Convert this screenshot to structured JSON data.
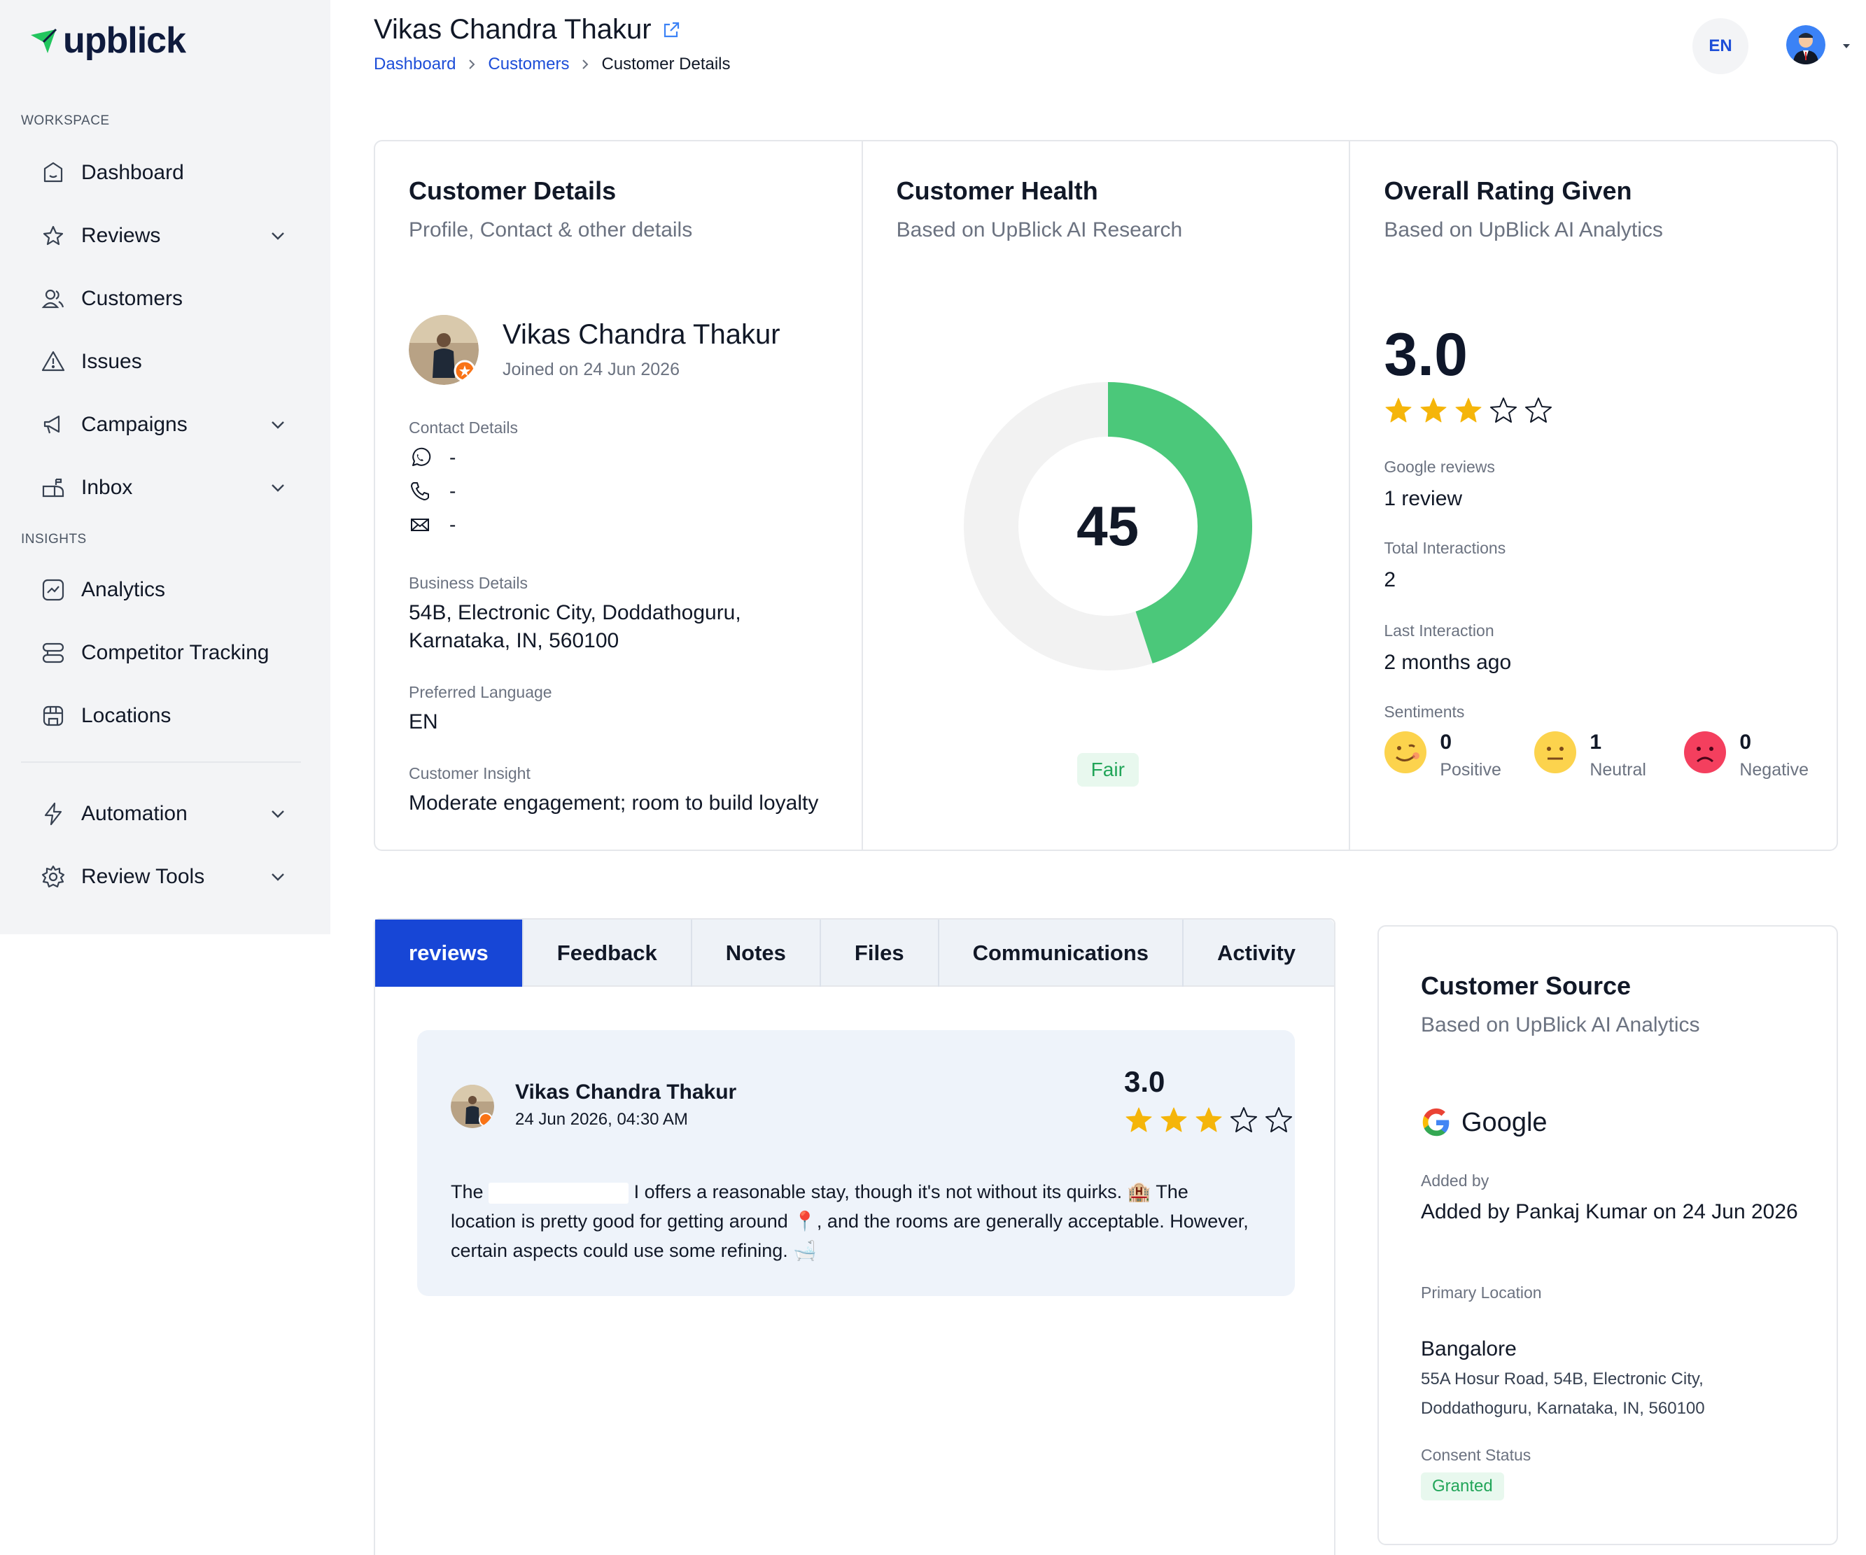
{
  "brand": {
    "name": "upblick",
    "accent": "#22c55e",
    "primary": "#1746d6"
  },
  "sidebar": {
    "workspace_label": "WORKSPACE",
    "insights_label": "INSIGHTS",
    "items": [
      {
        "label": "Dashboard",
        "icon": "dashboard-icon"
      },
      {
        "label": "Reviews",
        "icon": "reviews-icon"
      },
      {
        "label": "Customers",
        "icon": "customers-icon"
      },
      {
        "label": "Issues",
        "icon": "issues-icon"
      },
      {
        "label": "Campaigns",
        "icon": "campaigns-icon"
      },
      {
        "label": "Inbox",
        "icon": "inbox-icon"
      },
      {
        "label": "Analytics",
        "icon": "analytics-icon"
      },
      {
        "label": "Competitor Tracking",
        "icon": "competitor-icon"
      },
      {
        "label": "Locations",
        "icon": "locations-icon"
      },
      {
        "label": "Automation",
        "icon": "automation-icon"
      },
      {
        "label": "Review Tools",
        "icon": "review-tools-icon"
      }
    ]
  },
  "header": {
    "title": "Vikas Chandra Thakur",
    "breadcrumb": [
      "Dashboard",
      "Customers",
      "Customer Details"
    ],
    "lang": "EN"
  },
  "customer_details": {
    "title": "Customer Details",
    "subtitle": "Profile, Contact & other details",
    "name": "Vikas Chandra Thakur",
    "joined": "Joined on 24 Jun 2026",
    "contact_label": "Contact Details",
    "whatsapp": "-",
    "phone": "-",
    "email": "-",
    "business_label": "Business Details",
    "business_line1": "54B, Electronic City, Doddathoguru,",
    "business_line2": "Karnataka, IN, 560100",
    "language_label": "Preferred Language",
    "language": "EN",
    "insight_label": "Customer Insight",
    "insight": "Moderate engagement; room to build loyalty"
  },
  "customer_health": {
    "title": "Customer Health",
    "subtitle": "Based on UpBlick AI Research",
    "score": "45",
    "score_value": 45,
    "score_max": 100,
    "status": "Fair",
    "fill_color": "#4bc87a",
    "track_color": "#f2f2f2"
  },
  "overall_rating": {
    "title": "Overall Rating Given",
    "subtitle": "Based on UpBlick AI Analytics",
    "rating": "3.0",
    "stars_filled": 3,
    "stars_total": 5,
    "google_label": "Google reviews",
    "google_value": "1 review",
    "interactions_label": "Total Interactions",
    "interactions_value": "2",
    "last_label": "Last Interaction",
    "last_value": "2 months ago",
    "sentiments_label": "Sentiments",
    "positive_count": "0",
    "positive_label": "Positive",
    "neutral_count": "1",
    "neutral_label": "Neutral",
    "negative_count": "0",
    "negative_label": "Negative"
  },
  "tabs": [
    {
      "label": "reviews",
      "active": true
    },
    {
      "label": "Feedback",
      "active": false
    },
    {
      "label": "Notes",
      "active": false
    },
    {
      "label": "Files",
      "active": false
    },
    {
      "label": "Communications",
      "active": false
    },
    {
      "label": "Activity",
      "active": false
    }
  ],
  "review": {
    "name": "Vikas Chandra Thakur",
    "date": "24 Jun 2026, 04:30 AM",
    "score": "3.0",
    "stars_filled": 3,
    "text_start": "The",
    "text_rest": "I offers a reasonable stay, though it's not without its quirks. 🏨 The location is pretty good for getting around 📍, and the rooms are generally acceptable. However, certain aspects could use some refining. 🛁"
  },
  "customer_source": {
    "title": "Customer Source",
    "subtitle": "Based on UpBlick AI Analytics",
    "source": "Google",
    "added_label": "Added by",
    "added_value": "Added by Pankaj Kumar on 24 Jun 2026",
    "location_label": "Primary Location",
    "location_name": "Bangalore",
    "location_addr": "55A Hosur Road, 54B, Electronic City, Doddathoguru, Karnataka, IN, 560100",
    "consent_label": "Consent Status",
    "consent_value": "Granted"
  }
}
